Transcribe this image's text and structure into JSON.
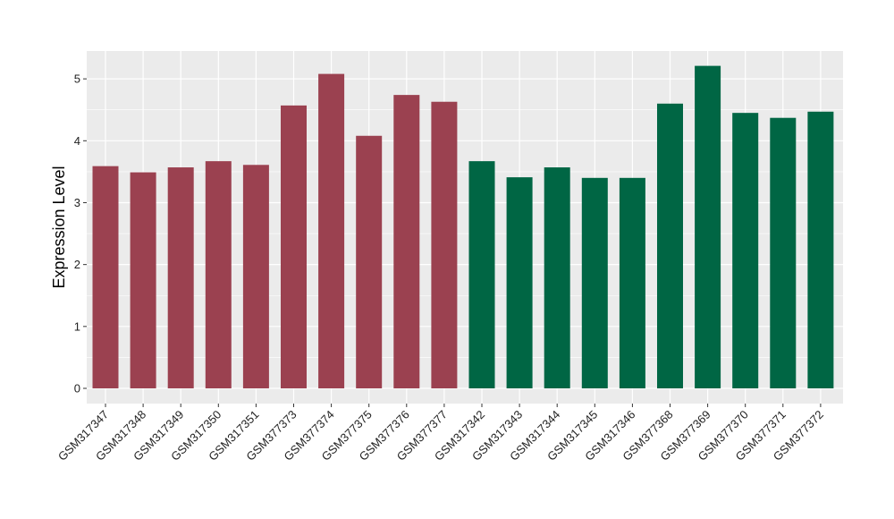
{
  "chart_data": {
    "type": "bar",
    "title": "",
    "xlabel": "",
    "ylabel": "Expression Level",
    "ylim": [
      0,
      5.45
    ],
    "yticks": [
      0,
      1,
      2,
      3,
      4,
      5
    ],
    "grid": true,
    "categories": [
      "GSM317347",
      "GSM317348",
      "GSM317349",
      "GSM317350",
      "GSM317351",
      "GSM377373",
      "GSM377374",
      "GSM377375",
      "GSM377376",
      "GSM377377",
      "GSM317342",
      "GSM317343",
      "GSM317344",
      "GSM317345",
      "GSM317346",
      "GSM377368",
      "GSM377369",
      "GSM377370",
      "GSM377371",
      "GSM377372"
    ],
    "values": [
      3.59,
      3.49,
      3.57,
      3.67,
      3.61,
      4.57,
      5.08,
      4.08,
      4.74,
      4.63,
      3.67,
      3.41,
      3.57,
      3.4,
      3.4,
      4.6,
      5.21,
      4.45,
      4.37,
      4.47
    ],
    "groups": [
      0,
      0,
      0,
      0,
      0,
      0,
      0,
      0,
      0,
      0,
      1,
      1,
      1,
      1,
      1,
      1,
      1,
      1,
      1,
      1
    ],
    "group_colors": [
      "#9b4150",
      "#006644"
    ],
    "panel_color": "#ebebeb",
    "gridline_color": "#ffffff"
  }
}
